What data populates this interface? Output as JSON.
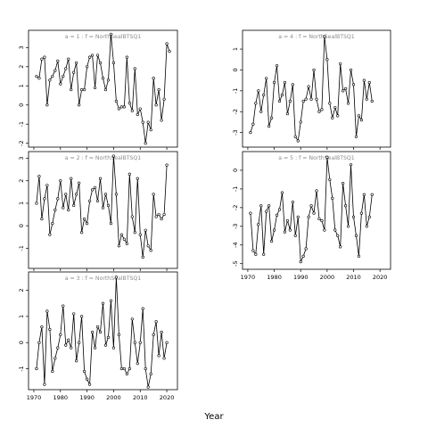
{
  "figure": {
    "xlabel": "Year",
    "colors": {
      "line": "#000000",
      "panel_title": "#8c8c8c",
      "frame": "#000000",
      "background": "#ffffff"
    }
  },
  "chart_data": [
    {
      "type": "line",
      "title": "a = 1  :  f = NorthSealBTSQ1",
      "xlim": [
        1968,
        2024
      ],
      "ylim": [
        -2.2,
        3.9
      ],
      "xticks": [
        1970,
        1980,
        1990,
        2000,
        2010,
        2020
      ],
      "yticks": [
        -2,
        -1,
        0,
        1,
        2,
        3
      ],
      "show_x_tick_labels": false,
      "series": [
        {
          "values": [
            [
              1971,
              1.5
            ],
            [
              1972,
              1.4
            ],
            [
              1973,
              2.4
            ],
            [
              1974,
              2.5
            ],
            [
              1975,
              0
            ],
            [
              1976,
              1.3
            ],
            [
              1977,
              1.5
            ],
            [
              1978,
              1.8
            ],
            [
              1979,
              2.3
            ],
            [
              1980,
              1.1
            ],
            [
              1981,
              1.5
            ],
            [
              1982,
              1.9
            ],
            [
              1983,
              2.4
            ],
            [
              1984,
              0.8
            ],
            [
              1985,
              1.7
            ],
            [
              1986,
              2.2
            ],
            [
              1987,
              0
            ],
            [
              1988,
              0.8
            ],
            [
              1989,
              0.8
            ],
            [
              1990,
              2
            ],
            [
              1991,
              2.5
            ],
            [
              1992,
              2.6
            ],
            [
              1993,
              0.9
            ],
            [
              1994,
              2.6
            ],
            [
              1995,
              2.2
            ],
            [
              1996,
              1.4
            ],
            [
              1997,
              0.8
            ],
            [
              1998,
              1.3
            ],
            [
              1999,
              3.7
            ],
            [
              2000,
              2.2
            ],
            [
              2001,
              0.2
            ],
            [
              2002,
              -0.2
            ],
            [
              2003,
              -0.1
            ],
            [
              2004,
              -0.1
            ],
            [
              2005,
              2.5
            ],
            [
              2006,
              0.1
            ],
            [
              2007,
              -0.3
            ],
            [
              2008,
              1.9
            ],
            [
              2009,
              -0.5
            ],
            [
              2010,
              -0.2
            ],
            [
              2011,
              -0.9
            ],
            [
              2012,
              -2
            ],
            [
              2013,
              -0.9
            ],
            [
              2014,
              -1.3
            ],
            [
              2015,
              1.4
            ],
            [
              2016,
              0
            ],
            [
              2017,
              0.8
            ],
            [
              2018,
              -0.8
            ],
            [
              2019,
              0.3
            ],
            [
              2020,
              3.2
            ],
            [
              2021,
              2.8
            ]
          ]
        }
      ]
    },
    {
      "type": "line",
      "title": "a = 2  :  f = NorthSealBTSQ1",
      "xlim": [
        1968,
        2024
      ],
      "ylim": [
        -1.9,
        3.3
      ],
      "xticks": [
        1970,
        1980,
        1990,
        2000,
        2010,
        2020
      ],
      "yticks": [
        -1,
        0,
        1,
        2,
        3
      ],
      "show_x_tick_labels": false,
      "series": [
        {
          "values": [
            [
              1971,
              1
            ],
            [
              1972,
              2.2
            ],
            [
              1973,
              0.3
            ],
            [
              1974,
              1.2
            ],
            [
              1975,
              1.8
            ],
            [
              1976,
              -0.4
            ],
            [
              1977,
              0.1
            ],
            [
              1978,
              0.7
            ],
            [
              1979,
              1.2
            ],
            [
              1980,
              2
            ],
            [
              1981,
              0.8
            ],
            [
              1982,
              1.4
            ],
            [
              1983,
              0.7
            ],
            [
              1984,
              2.1
            ],
            [
              1985,
              0.9
            ],
            [
              1986,
              1.4
            ],
            [
              1987,
              1.9
            ],
            [
              1988,
              -0.3
            ],
            [
              1989,
              0.3
            ],
            [
              1990,
              0.1
            ],
            [
              1991,
              1.1
            ],
            [
              1992,
              1.6
            ],
            [
              1993,
              1.7
            ],
            [
              1994,
              1.1
            ],
            [
              1995,
              2.1
            ],
            [
              1996,
              0.8
            ],
            [
              1997,
              1.4
            ],
            [
              1998,
              0.9
            ],
            [
              1999,
              0.1
            ],
            [
              2000,
              3.1
            ],
            [
              2001,
              1.4
            ],
            [
              2002,
              -0.9
            ],
            [
              2003,
              -0.4
            ],
            [
              2004,
              -0.6
            ],
            [
              2005,
              -0.8
            ],
            [
              2006,
              2.3
            ],
            [
              2007,
              0.4
            ],
            [
              2008,
              -0.3
            ],
            [
              2009,
              2.1
            ],
            [
              2010,
              -0.4
            ],
            [
              2011,
              -1.4
            ],
            [
              2012,
              -0.2
            ],
            [
              2013,
              -0.9
            ],
            [
              2014,
              -1.1
            ],
            [
              2015,
              1.4
            ],
            [
              2016,
              0.4
            ],
            [
              2017,
              0.5
            ],
            [
              2018,
              0.3
            ],
            [
              2019,
              0.5
            ],
            [
              2020,
              2.7
            ]
          ]
        }
      ]
    },
    {
      "type": "line",
      "title": "a = 3  :  f = NorthSealBTSQ1",
      "xlim": [
        1968,
        2024
      ],
      "ylim": [
        -1.8,
        2.7
      ],
      "xticks": [
        1970,
        1980,
        1990,
        2000,
        2010,
        2020
      ],
      "yticks": [
        -1,
        0,
        1,
        2
      ],
      "show_x_tick_labels": true,
      "series": [
        {
          "values": [
            [
              1971,
              -1
            ],
            [
              1972,
              0
            ],
            [
              1973,
              0.6
            ],
            [
              1974,
              -1.6
            ],
            [
              1975,
              1.2
            ],
            [
              1976,
              0.5
            ],
            [
              1977,
              -1.1
            ],
            [
              1978,
              -0.6
            ],
            [
              1979,
              -0.2
            ],
            [
              1980,
              0.3
            ],
            [
              1981,
              1.4
            ],
            [
              1982,
              -0.1
            ],
            [
              1983,
              0.1
            ],
            [
              1984,
              -0.2
            ],
            [
              1985,
              1.1
            ],
            [
              1986,
              -0.7
            ],
            [
              1987,
              0
            ],
            [
              1988,
              1
            ],
            [
              1989,
              -1.1
            ],
            [
              1990,
              -1.4
            ],
            [
              1991,
              -1.6
            ],
            [
              1992,
              0.4
            ],
            [
              1993,
              -0.2
            ],
            [
              1994,
              0.6
            ],
            [
              1995,
              0.4
            ],
            [
              1996,
              1.5
            ],
            [
              1997,
              -0.1
            ],
            [
              1998,
              0.2
            ],
            [
              1999,
              1.6
            ],
            [
              2000,
              -0.2
            ],
            [
              2001,
              2.5
            ],
            [
              2002,
              0.3
            ],
            [
              2003,
              -1
            ],
            [
              2004,
              -1
            ],
            [
              2005,
              -1.2
            ],
            [
              2006,
              -1
            ],
            [
              2007,
              0.9
            ],
            [
              2008,
              0
            ],
            [
              2009,
              -0.8
            ],
            [
              2010,
              0
            ],
            [
              2011,
              1.3
            ],
            [
              2012,
              -1
            ],
            [
              2013,
              -1.7
            ],
            [
              2014,
              -1.2
            ],
            [
              2015,
              0.3
            ],
            [
              2016,
              0.8
            ],
            [
              2017,
              -0.5
            ],
            [
              2018,
              0.4
            ],
            [
              2019,
              -0.6
            ],
            [
              2020,
              0
            ]
          ]
        }
      ]
    },
    {
      "type": "line",
      "title": "a = 4  :  f = NorthSealBTSQ1",
      "xlim": [
        1968,
        2024
      ],
      "ylim": [
        -3.7,
        1.9
      ],
      "xticks": [
        1970,
        1980,
        1990,
        2000,
        2010,
        2020
      ],
      "yticks": [
        -3,
        -2,
        -1,
        0,
        1
      ],
      "show_x_tick_labels": false,
      "series": [
        {
          "values": [
            [
              1971,
              -3
            ],
            [
              1972,
              -2.6
            ],
            [
              1973,
              -1.6
            ],
            [
              1974,
              -1
            ],
            [
              1975,
              -2
            ],
            [
              1976,
              -1.2
            ],
            [
              1977,
              -0.4
            ],
            [
              1978,
              -2.7
            ],
            [
              1979,
              -2.3
            ],
            [
              1980,
              -0.6
            ],
            [
              1981,
              0.2
            ],
            [
              1982,
              -1.5
            ],
            [
              1983,
              -1.2
            ],
            [
              1984,
              -0.6
            ],
            [
              1985,
              -2.1
            ],
            [
              1986,
              -1.5
            ],
            [
              1987,
              -0.7
            ],
            [
              1988,
              -3.2
            ],
            [
              1989,
              -3.4
            ],
            [
              1990,
              -2.5
            ],
            [
              1991,
              -1.5
            ],
            [
              1992,
              -1.4
            ],
            [
              1993,
              -0.8
            ],
            [
              1994,
              -1.4
            ],
            [
              1995,
              0
            ],
            [
              1996,
              -1.4
            ],
            [
              1997,
              -2
            ],
            [
              1998,
              -1.9
            ],
            [
              1999,
              1.6
            ],
            [
              2000,
              0.5
            ],
            [
              2001,
              -1.6
            ],
            [
              2002,
              -2.3
            ],
            [
              2003,
              -1.8
            ],
            [
              2004,
              -2.2
            ],
            [
              2005,
              0.3
            ],
            [
              2006,
              -1
            ],
            [
              2007,
              -0.9
            ],
            [
              2008,
              -1.6
            ],
            [
              2009,
              0
            ],
            [
              2010,
              -0.7
            ],
            [
              2011,
              -3.2
            ],
            [
              2012,
              -2.2
            ],
            [
              2013,
              -2.4
            ],
            [
              2014,
              -0.5
            ],
            [
              2015,
              -1.4
            ],
            [
              2016,
              -0.6
            ],
            [
              2017,
              -1.5
            ]
          ]
        }
      ]
    },
    {
      "type": "line",
      "title": "a = 5  :  f = NorthSealBTSQ1",
      "xlim": [
        1968,
        2024
      ],
      "ylim": [
        -5.3,
        1.0
      ],
      "xticks": [
        1970,
        1980,
        1990,
        2000,
        2010,
        2020
      ],
      "yticks": [
        -5,
        -4,
        -3,
        -2,
        -1,
        0
      ],
      "show_x_tick_labels": true,
      "series": [
        {
          "values": [
            [
              1971,
              -2.3
            ],
            [
              1972,
              -4.3
            ],
            [
              1973,
              -4.5
            ],
            [
              1974,
              -2.9
            ],
            [
              1975,
              -1.9
            ],
            [
              1976,
              -4.5
            ],
            [
              1977,
              -2.2
            ],
            [
              1978,
              -1.9
            ],
            [
              1979,
              -3.8
            ],
            [
              1980,
              -3.2
            ],
            [
              1981,
              -2.4
            ],
            [
              1982,
              -2.1
            ],
            [
              1983,
              -1.2
            ],
            [
              1984,
              -3.3
            ],
            [
              1985,
              -2.7
            ],
            [
              1986,
              -3.2
            ],
            [
              1987,
              -1.7
            ],
            [
              1988,
              -3.5
            ],
            [
              1989,
              -2.5
            ],
            [
              1990,
              -4.9
            ],
            [
              1991,
              -4.6
            ],
            [
              1992,
              -4.2
            ],
            [
              1993,
              -2.5
            ],
            [
              1994,
              -1.9
            ],
            [
              1995,
              -2.3
            ],
            [
              1996,
              -1.1
            ],
            [
              1997,
              -2.6
            ],
            [
              1998,
              -2.7
            ],
            [
              1999,
              -3.2
            ],
            [
              2000,
              0.7
            ],
            [
              2001,
              -0.5
            ],
            [
              2002,
              -1.5
            ],
            [
              2003,
              -3.2
            ],
            [
              2004,
              -3.5
            ],
            [
              2005,
              -4.1
            ],
            [
              2006,
              -0.7
            ],
            [
              2007,
              -1.9
            ],
            [
              2008,
              -3
            ],
            [
              2009,
              0.3
            ],
            [
              2010,
              -2.5
            ],
            [
              2011,
              -3.5
            ],
            [
              2012,
              -4.6
            ],
            [
              2013,
              -2.3
            ],
            [
              2014,
              -1.3
            ],
            [
              2015,
              -3
            ],
            [
              2016,
              -2.5
            ],
            [
              2017,
              -1.3
            ]
          ]
        }
      ]
    }
  ]
}
